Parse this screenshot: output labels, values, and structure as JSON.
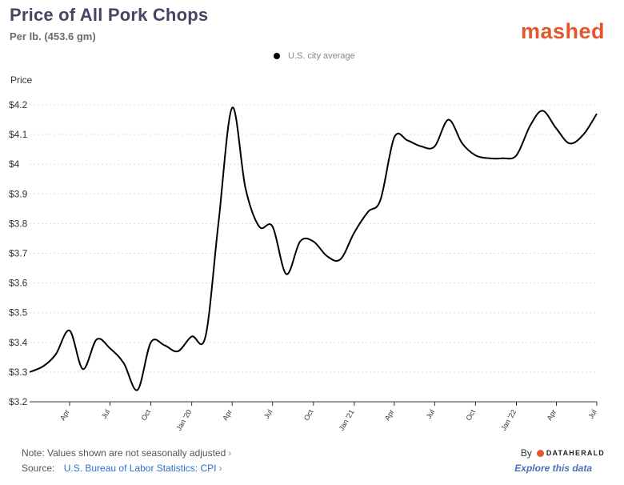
{
  "header": {
    "title": "Price of All Pork Chops",
    "subtitle": "Per lb. (453.6 gm)",
    "brand": "mashed"
  },
  "legend": {
    "label": "U.S. city average"
  },
  "footer": {
    "note": "Note: Values shown are not seasonally adjusted",
    "source_label": "Source:",
    "source_link": "U.S. Bureau of Labor Statistics: CPI",
    "chevron": "›",
    "by_label": "By",
    "by_logo_text": "DATAHERALD",
    "explore": "Explore this data"
  },
  "colors": {
    "line": "#000000",
    "brand": "#e4572e",
    "title": "#4a4463",
    "link": "#2e6fd1"
  },
  "chart_data": {
    "type": "line",
    "title": "Price of All Pork Chops",
    "subtitle": "Per lb. (453.6 gm)",
    "ylabel": "Price",
    "xlabel": "",
    "ylim": [
      3.2,
      4.2
    ],
    "yticks": [
      3.2,
      3.3,
      3.4,
      3.5,
      3.6,
      3.7,
      3.8,
      3.9,
      4.0,
      4.1,
      4.2
    ],
    "yticklabels": [
      "$3.2",
      "$3.3",
      "$3.4",
      "$3.5",
      "$3.6",
      "$3.7",
      "$3.8",
      "$3.9",
      "$4",
      "$4.1",
      "$4.2"
    ],
    "xticks": [
      "2019-04",
      "2019-07",
      "2019-10",
      "2020-01",
      "2020-04",
      "2020-07",
      "2020-10",
      "2021-01",
      "2021-04",
      "2021-07",
      "2021-10",
      "2022-01",
      "2022-04",
      "2022-07"
    ],
    "xticklabels": [
      "Apr",
      "Jul",
      "Oct",
      "Jan '20",
      "Apr",
      "Jul",
      "Oct",
      "Jan '21",
      "Apr",
      "Jul",
      "Oct",
      "Jan '22",
      "Apr",
      "Jul"
    ],
    "grid": true,
    "legend_position": "top-center",
    "series": [
      {
        "name": "U.S. city average",
        "x": [
          "2019-01",
          "2019-02",
          "2019-03",
          "2019-04",
          "2019-05",
          "2019-06",
          "2019-07",
          "2019-08",
          "2019-09",
          "2019-10",
          "2019-11",
          "2019-12",
          "2020-01",
          "2020-02",
          "2020-03",
          "2020-04",
          "2020-05",
          "2020-06",
          "2020-07",
          "2020-08",
          "2020-09",
          "2020-10",
          "2020-11",
          "2020-12",
          "2021-01",
          "2021-02",
          "2021-03",
          "2021-04",
          "2021-05",
          "2021-06",
          "2021-07",
          "2021-08",
          "2021-09",
          "2021-10",
          "2021-11",
          "2021-12",
          "2022-01",
          "2022-02",
          "2022-03",
          "2022-04",
          "2022-05",
          "2022-06",
          "2022-07"
        ],
        "values": [
          3.3,
          3.32,
          3.36,
          3.44,
          3.31,
          3.41,
          3.38,
          3.33,
          3.24,
          3.4,
          3.39,
          3.37,
          3.42,
          3.42,
          3.8,
          4.19,
          3.92,
          3.79,
          3.79,
          3.63,
          3.74,
          3.74,
          3.69,
          3.68,
          3.77,
          3.84,
          3.88,
          4.09,
          4.08,
          4.06,
          4.06,
          4.15,
          4.07,
          4.03,
          4.02,
          4.02,
          4.03,
          4.13,
          4.18,
          4.12,
          4.07,
          4.1,
          4.17
        ]
      }
    ]
  }
}
